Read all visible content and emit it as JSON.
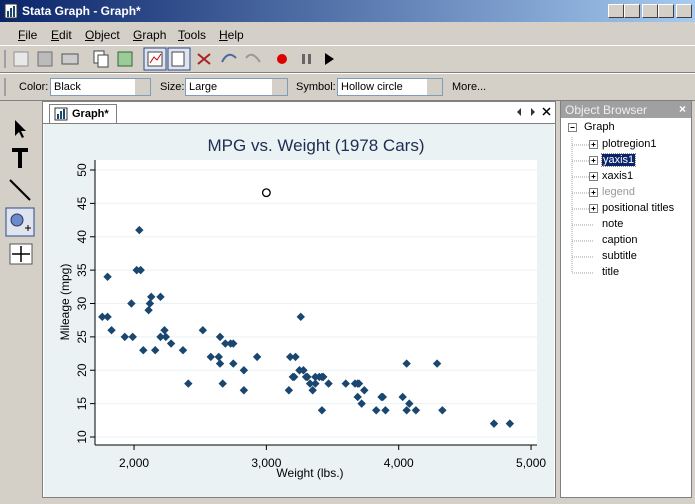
{
  "window": {
    "title": "Stata Graph - Graph*"
  },
  "menu": {
    "items": [
      "File",
      "Edit",
      "Object",
      "Graph",
      "Tools",
      "Help"
    ]
  },
  "properties": {
    "color_label": "Color:",
    "color": "Black",
    "size_label": "Size:",
    "size": "Large",
    "symbol_label": "Symbol:",
    "symbol": "Hollow circle",
    "more": "More..."
  },
  "tab": {
    "label": "Graph*"
  },
  "object_browser": {
    "title": "Object Browser",
    "root": "Graph",
    "items": [
      {
        "label": "plotregion1",
        "expandable": true
      },
      {
        "label": "yaxis1",
        "expandable": true,
        "selected": true
      },
      {
        "label": "xaxis1",
        "expandable": true
      },
      {
        "label": "legend",
        "expandable": true,
        "disabled": true
      },
      {
        "label": "positional titles",
        "expandable": true
      },
      {
        "label": "note"
      },
      {
        "label": "caption"
      },
      {
        "label": "subtitle"
      },
      {
        "label": "title"
      }
    ]
  },
  "chart_data": {
    "type": "scatter",
    "title": "MPG vs. Weight (1978 Cars)",
    "xlabel": "Weight (lbs.)",
    "ylabel": "Mileage (mpg)",
    "xlim": [
      1705,
      5045
    ],
    "ylim": [
      8.8,
      51.5
    ],
    "xticks": [
      {
        "value": 2000,
        "label": "2,000"
      },
      {
        "value": 3000,
        "label": "3,000"
      },
      {
        "value": 4000,
        "label": "4,000"
      },
      {
        "value": 5000,
        "label": "5,000"
      }
    ],
    "yticks": [
      10,
      15,
      20,
      25,
      30,
      35,
      40,
      45,
      50
    ],
    "grid": true,
    "series": [
      {
        "color": "#1a476f",
        "marker": "diamond",
        "x": [
          2930,
          3350,
          2640,
          3250,
          4080,
          3670,
          2230,
          3280,
          3880,
          3400,
          4330,
          3900,
          4290,
          2110,
          3690,
          3180,
          3220,
          2750,
          3430,
          2120,
          3600,
          3870,
          3740,
          1800,
          2650,
          4840,
          4720,
          3830,
          2580,
          4060,
          3720,
          3370,
          4130,
          2830,
          4060,
          3310,
          3300,
          3690,
          3370,
          2730,
          4030,
          3260,
          1800,
          2200,
          2520,
          3330,
          3700,
          3470,
          3210,
          3200,
          3420,
          2690,
          2830,
          2070,
          2650,
          2370,
          2020,
          2280,
          2750,
          2130,
          2240,
          1760,
          1980,
          3420,
          1830,
          2050,
          2410,
          2200,
          2670,
          2160,
          2040,
          1930,
          1990,
          3170
        ],
        "values": [
          22,
          17,
          22,
          20,
          15,
          18,
          26,
          20,
          16,
          19,
          14,
          14,
          21,
          29,
          16,
          22,
          22,
          24,
          19,
          30,
          18,
          16,
          17,
          28,
          21,
          12,
          12,
          14,
          22,
          14,
          15,
          18,
          14,
          20,
          21,
          19,
          19,
          18,
          19,
          24,
          16,
          28,
          34,
          25,
          26,
          18,
          18,
          18,
          19,
          19,
          19,
          24,
          17,
          23,
          25,
          23,
          35,
          24,
          21,
          31,
          25,
          28,
          30,
          14,
          26,
          35,
          18,
          31,
          18,
          23,
          41,
          25,
          25,
          17
        ]
      },
      {
        "color": "#000000",
        "marker": "hollow-circle",
        "x": [
          3000
        ],
        "values": [
          46.6
        ]
      }
    ]
  }
}
